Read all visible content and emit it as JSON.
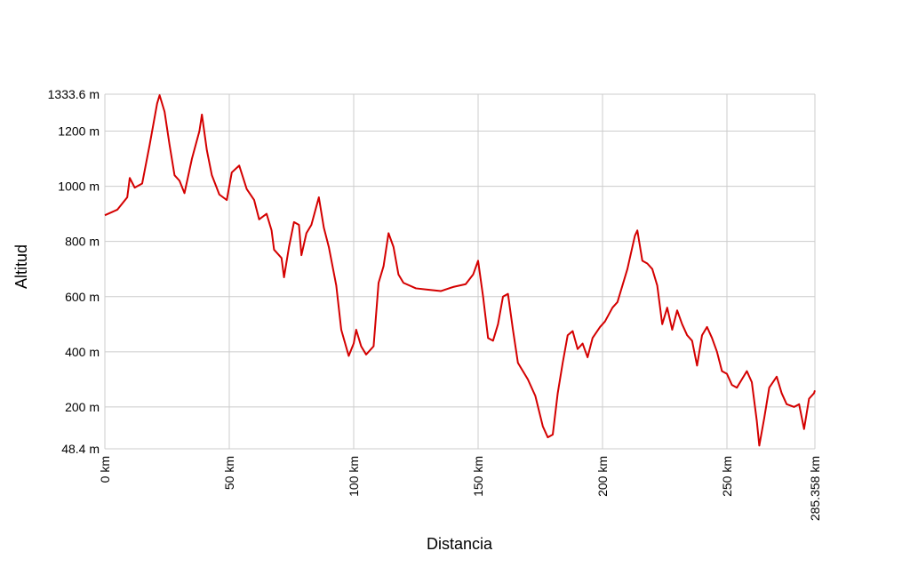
{
  "chart_data": {
    "type": "line",
    "xlabel": "Distancia",
    "ylabel": "Altitud",
    "color": "#d40000",
    "grid": true,
    "xlim": [
      0,
      285.358
    ],
    "ylim": [
      48.4,
      1333.6
    ],
    "xticks": [
      {
        "value": 0,
        "label": "0 km"
      },
      {
        "value": 50,
        "label": "50 km"
      },
      {
        "value": 100,
        "label": "100 km"
      },
      {
        "value": 150,
        "label": "150 km"
      },
      {
        "value": 200,
        "label": "200 km"
      },
      {
        "value": 250,
        "label": "250 km"
      },
      {
        "value": 285.358,
        "label": "285.358 km"
      }
    ],
    "yticks": [
      {
        "value": 48.4,
        "label": "48.4 m"
      },
      {
        "value": 200,
        "label": "200 m"
      },
      {
        "value": 400,
        "label": "400 m"
      },
      {
        "value": 600,
        "label": "600 m"
      },
      {
        "value": 800,
        "label": "800 m"
      },
      {
        "value": 1000,
        "label": "1000 m"
      },
      {
        "value": 1200,
        "label": "1200 m"
      },
      {
        "value": 1333.6,
        "label": "1333.6 m"
      }
    ],
    "x": [
      0,
      5,
      9,
      10,
      12,
      15,
      18,
      21,
      22,
      24,
      26,
      28,
      30,
      32,
      35,
      38,
      39,
      41,
      43,
      46,
      49,
      51,
      54,
      57,
      60,
      62,
      65,
      67,
      68,
      71,
      72,
      74,
      76,
      78,
      79,
      81,
      83,
      86,
      88,
      90,
      93,
      95,
      98,
      100,
      101,
      103,
      105,
      108,
      110,
      112,
      114,
      116,
      118,
      120,
      125,
      130,
      135,
      140,
      145,
      148,
      150,
      152,
      154,
      156,
      158,
      160,
      162,
      164,
      166,
      170,
      173,
      176,
      178,
      180,
      182,
      184,
      186,
      188,
      190,
      192,
      194,
      196,
      199,
      201,
      204,
      206,
      210,
      213,
      214,
      216,
      218,
      220,
      222,
      224,
      226,
      228,
      230,
      232,
      234,
      236,
      238,
      240,
      242,
      244,
      246,
      248,
      250,
      252,
      254,
      256,
      258,
      260,
      262,
      263,
      265,
      267,
      270,
      272,
      274,
      277,
      279,
      281,
      283,
      285,
      285.358
    ],
    "values": [
      895,
      915,
      960,
      1030,
      995,
      1010,
      1150,
      1300,
      1330,
      1270,
      1150,
      1040,
      1020,
      975,
      1100,
      1200,
      1260,
      1130,
      1040,
      970,
      950,
      1050,
      1075,
      990,
      950,
      880,
      900,
      840,
      770,
      740,
      670,
      780,
      870,
      860,
      750,
      830,
      860,
      960,
      850,
      780,
      640,
      480,
      385,
      430,
      480,
      420,
      390,
      420,
      650,
      710,
      830,
      780,
      680,
      650,
      630,
      625,
      620,
      635,
      645,
      680,
      730,
      600,
      450,
      440,
      500,
      600,
      610,
      480,
      360,
      300,
      240,
      130,
      90,
      100,
      250,
      360,
      460,
      475,
      410,
      430,
      380,
      450,
      490,
      510,
      560,
      580,
      700,
      820,
      840,
      730,
      720,
      700,
      640,
      500,
      560,
      480,
      550,
      500,
      460,
      440,
      350,
      460,
      490,
      450,
      400,
      330,
      320,
      280,
      270,
      300,
      330,
      290,
      150,
      60,
      160,
      270,
      310,
      250,
      210,
      200,
      210,
      120,
      230,
      250,
      260
    ]
  }
}
